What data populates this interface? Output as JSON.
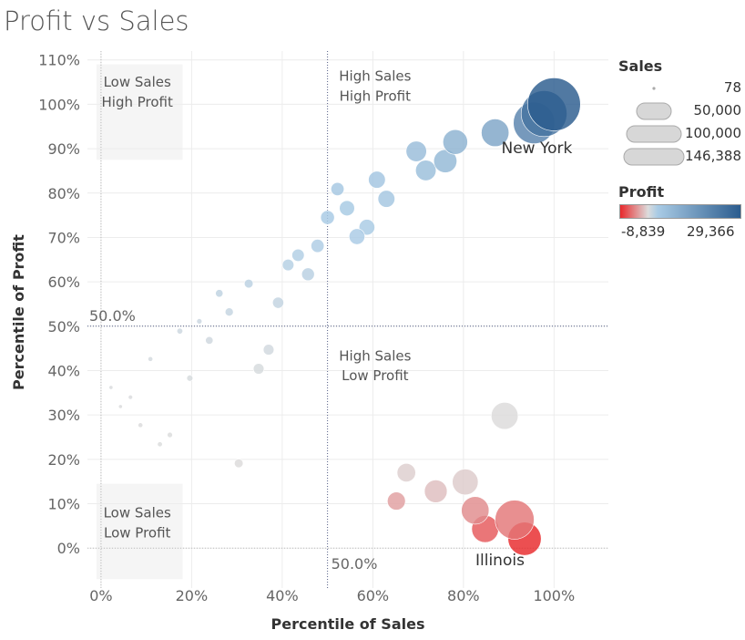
{
  "title": "Profit vs Sales",
  "chart_data": {
    "type": "scatter",
    "title": "Profit vs Sales",
    "xlabel": "Percentile of Sales",
    "ylabel": "Percentile of Profit",
    "xlim": [
      -3,
      112
    ],
    "ylim": [
      -9,
      112
    ],
    "xticks": [
      0,
      20,
      40,
      60,
      80,
      100
    ],
    "xtick_labels": [
      "0%",
      "20%",
      "40%",
      "60%",
      "80%",
      "100%"
    ],
    "yticks": [
      0,
      10,
      20,
      30,
      40,
      50,
      60,
      70,
      80,
      90,
      100,
      110
    ],
    "ytick_labels": [
      "0%",
      "10%",
      "20%",
      "30%",
      "40%",
      "50%",
      "60%",
      "70%",
      "80%",
      "90%",
      "100%",
      "110%"
    ],
    "reference_lines": {
      "x": 50,
      "y": 50,
      "x_label": "50.0%",
      "y_label": "50.0%"
    },
    "quadrant_labels": [
      {
        "line1": "Low Sales",
        "line2": "High Profit"
      },
      {
        "line1": "High Sales",
        "line2": "High Profit"
      },
      {
        "line1": "High Sales",
        "line2": "Low Profit"
      },
      {
        "line1": "Low Sales",
        "line2": "Low Profit"
      }
    ],
    "points": [
      {
        "x": 100.0,
        "y": 100.0,
        "sales": 146388,
        "profit": 29366
      },
      {
        "x": 97.8,
        "y": 97.9,
        "sales": 110000,
        "profit": 24000
      },
      {
        "x": 95.6,
        "y": 95.8,
        "sales": 90000,
        "profit": 20000
      },
      {
        "x": 87.0,
        "y": 93.6,
        "sales": 40000,
        "profit": 12000
      },
      {
        "x": 78.2,
        "y": 91.5,
        "sales": 32000,
        "profit": 9000
      },
      {
        "x": 76.0,
        "y": 87.2,
        "sales": 28000,
        "profit": 7500
      },
      {
        "x": 69.6,
        "y": 89.4,
        "sales": 22000,
        "profit": 6500
      },
      {
        "x": 71.7,
        "y": 85.1,
        "sales": 22000,
        "profit": 6000
      },
      {
        "x": 60.9,
        "y": 83.0,
        "sales": 15000,
        "profit": 4500
      },
      {
        "x": 63.0,
        "y": 78.7,
        "sales": 15000,
        "profit": 4200
      },
      {
        "x": 52.2,
        "y": 80.9,
        "sales": 9000,
        "profit": 3800
      },
      {
        "x": 54.3,
        "y": 76.6,
        "sales": 12000,
        "profit": 3500
      },
      {
        "x": 50.0,
        "y": 74.5,
        "sales": 10000,
        "profit": 3300
      },
      {
        "x": 58.7,
        "y": 72.3,
        "sales": 13000,
        "profit": 3100
      },
      {
        "x": 56.5,
        "y": 70.2,
        "sales": 13000,
        "profit": 3000
      },
      {
        "x": 47.8,
        "y": 68.1,
        "sales": 9000,
        "profit": 2700
      },
      {
        "x": 43.5,
        "y": 66.0,
        "sales": 8000,
        "profit": 2500
      },
      {
        "x": 41.3,
        "y": 63.8,
        "sales": 7000,
        "profit": 2300
      },
      {
        "x": 45.7,
        "y": 61.7,
        "sales": 8500,
        "profit": 2100
      },
      {
        "x": 32.6,
        "y": 59.6,
        "sales": 4000,
        "profit": 1900
      },
      {
        "x": 26.1,
        "y": 57.4,
        "sales": 3000,
        "profit": 1700
      },
      {
        "x": 39.1,
        "y": 55.3,
        "sales": 6500,
        "profit": 1500
      },
      {
        "x": 28.3,
        "y": 53.2,
        "sales": 3500,
        "profit": 1300
      },
      {
        "x": 21.7,
        "y": 51.1,
        "sales": 1500,
        "profit": 1100
      },
      {
        "x": 17.4,
        "y": 48.9,
        "sales": 1800,
        "profit": 900
      },
      {
        "x": 23.9,
        "y": 46.8,
        "sales": 3000,
        "profit": 800
      },
      {
        "x": 37.0,
        "y": 44.7,
        "sales": 6000,
        "profit": 650
      },
      {
        "x": 10.9,
        "y": 42.6,
        "sales": 1200,
        "profit": 500
      },
      {
        "x": 34.8,
        "y": 40.4,
        "sales": 6000,
        "profit": 420
      },
      {
        "x": 19.6,
        "y": 38.3,
        "sales": 2000,
        "profit": 350
      },
      {
        "x": 2.2,
        "y": 36.2,
        "sales": 800,
        "profit": 250
      },
      {
        "x": 6.5,
        "y": 34.0,
        "sales": 1000,
        "profit": 200
      },
      {
        "x": 4.3,
        "y": 31.9,
        "sales": 800,
        "profit": 150
      },
      {
        "x": 89.1,
        "y": 29.8,
        "sales": 38000,
        "profit": -100
      },
      {
        "x": 8.7,
        "y": 27.7,
        "sales": 1200,
        "profit": 100
      },
      {
        "x": 15.2,
        "y": 25.5,
        "sales": 1500,
        "profit": 50
      },
      {
        "x": 13.0,
        "y": 23.4,
        "sales": 1300,
        "profit": 30
      },
      {
        "x": 30.4,
        "y": 19.1,
        "sales": 4000,
        "profit": -50
      },
      {
        "x": 67.4,
        "y": 17.0,
        "sales": 18000,
        "profit": -700
      },
      {
        "x": 80.4,
        "y": 14.9,
        "sales": 35000,
        "profit": -900
      },
      {
        "x": 73.9,
        "y": 12.8,
        "sales": 27000,
        "profit": -1500
      },
      {
        "x": 65.2,
        "y": 10.6,
        "sales": 17000,
        "profit": -3000
      },
      {
        "x": 82.6,
        "y": 8.5,
        "sales": 40000,
        "profit": -4000
      },
      {
        "x": 91.3,
        "y": 6.4,
        "sales": 80000,
        "profit": -5000
      },
      {
        "x": 84.8,
        "y": 4.3,
        "sales": 38000,
        "profit": -6500
      },
      {
        "x": 93.5,
        "y": 2.1,
        "sales": 58000,
        "profit": -8839
      }
    ],
    "annotations": [
      {
        "text": "New York",
        "x": 95.6,
        "y": 95.8
      },
      {
        "text": "Illinois",
        "x": 93.5,
        "y": 2.1
      }
    ],
    "size_legend": {
      "title": "Sales",
      "values": [
        78,
        50000,
        100000,
        146388
      ],
      "labels": [
        "78",
        "50,000",
        "100,000",
        "146,388"
      ]
    },
    "color_legend": {
      "title": "Profit",
      "min": -8839,
      "max": 29366,
      "min_label": "-8,839",
      "max_label": "29,366",
      "colors": {
        "negative": "#e8282b",
        "zero": "#dcdcdc",
        "light_positive": "#a9cbe5",
        "positive": "#2b5c8e"
      }
    }
  }
}
